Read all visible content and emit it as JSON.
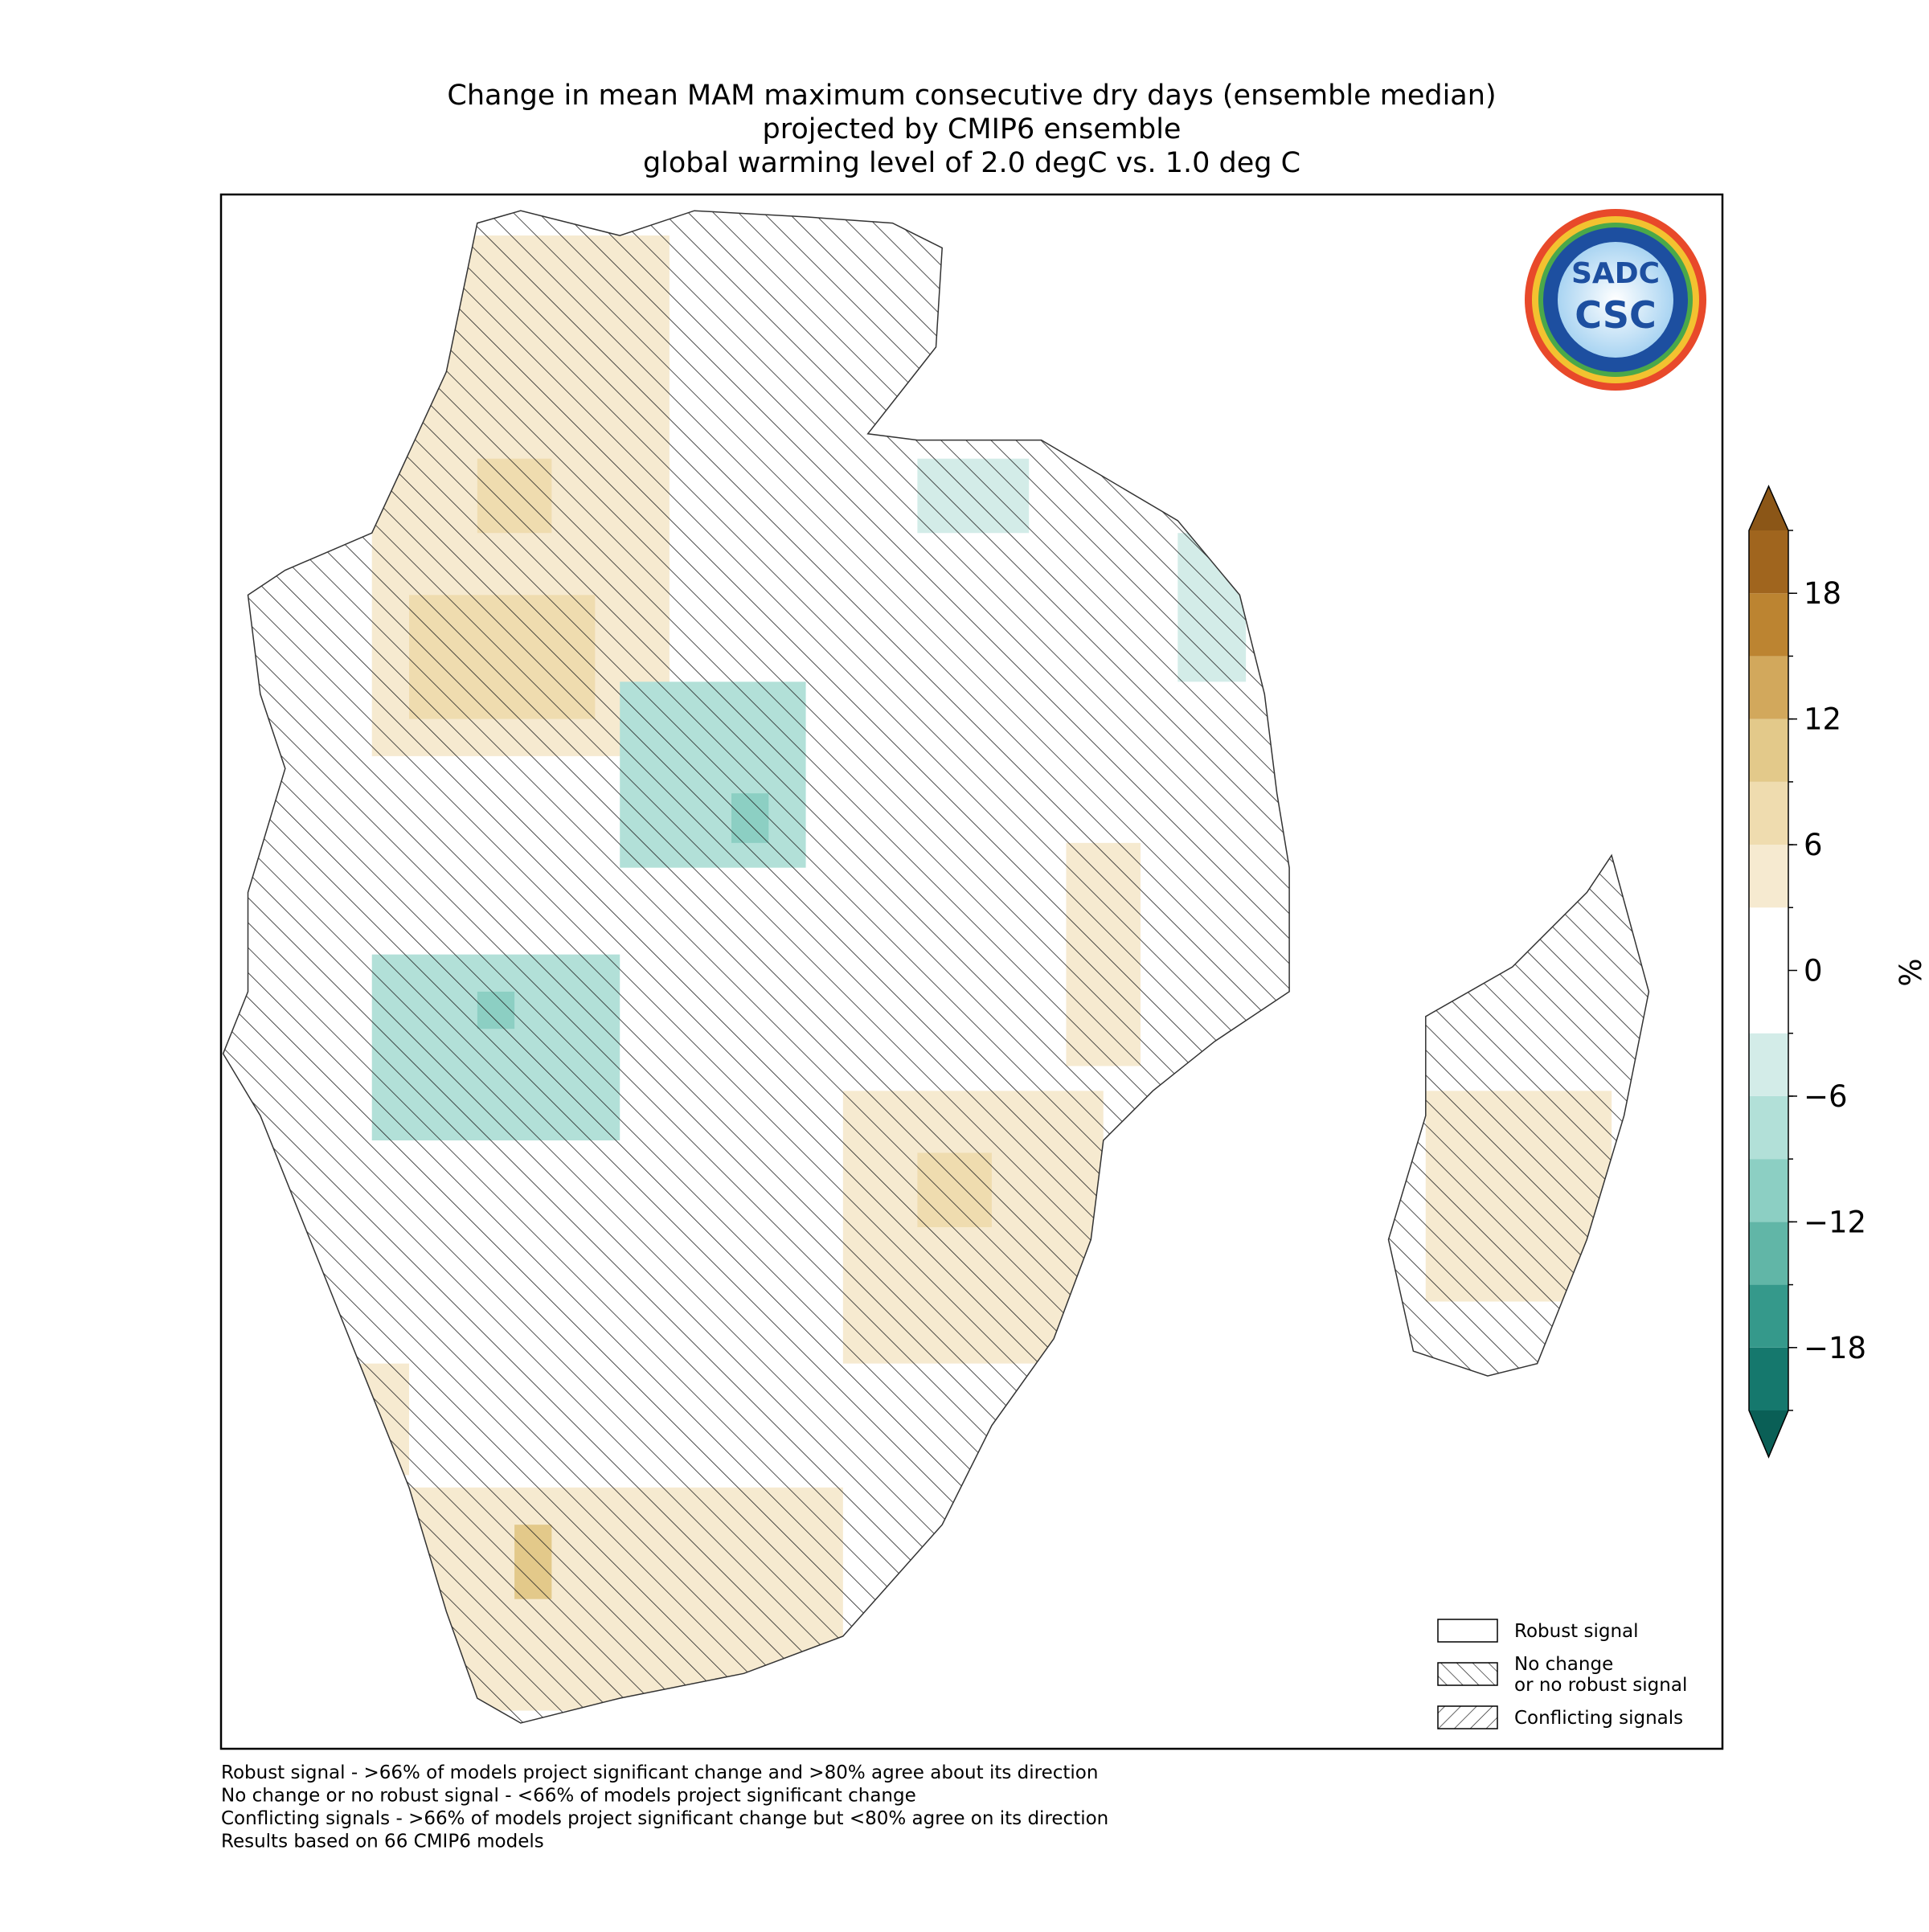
{
  "chart_data": {
    "type": "map",
    "title": [
      "Change in mean MAM maximum consecutive dry days (ensemble median)",
      "projected by CMIP6 ensemble",
      "global warming level of 2.0 degC vs. 1.0 deg C"
    ],
    "colorbar": {
      "label": "%",
      "ylim": [
        -21,
        21
      ],
      "levels": [
        -21,
        -18,
        -15,
        -12,
        -9,
        -6,
        -3,
        3,
        6,
        9,
        12,
        15,
        18,
        21
      ],
      "colors": [
        "#15786d",
        "#35998b",
        "#61b6a7",
        "#8ccfc3",
        "#b2e0d8",
        "#d3ece8",
        "#ffffff",
        "#f6ead0",
        "#efdcaf",
        "#e3c98a",
        "#d2a85c",
        "#bc8431",
        "#a0651e"
      ],
      "extend_colors": [
        "#0a5f56",
        "#8b5617"
      ],
      "yticks": [
        {
          "value": -18,
          "label": "−18"
        },
        {
          "value": -12,
          "label": "−12"
        },
        {
          "value": -6,
          "label": "−6"
        },
        0,
        6,
        12,
        18
      ]
    },
    "legend": [
      "Robust signal",
      "No change\nor no robust signal",
      "Conflicting signals"
    ],
    "footnotes": [
      "Robust signal - >66% of models project significant change and >80% agree about its direction",
      "No change or no robust signal - <66% of models project significant change",
      "Conflicting signals - >66% of models project significant change but <80% agree on its direction",
      "Results based on 66 CMIP6 models"
    ],
    "logo_text": [
      "SADC",
      "CSC"
    ]
  }
}
